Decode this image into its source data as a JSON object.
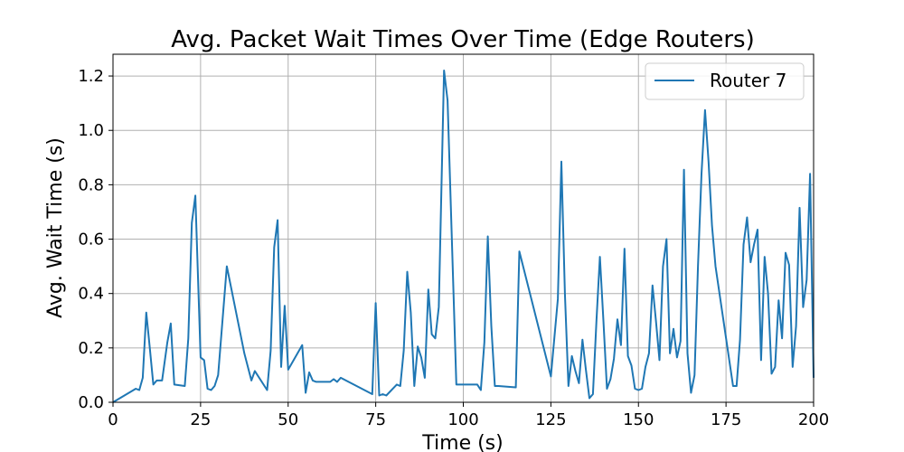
{
  "chart_data": {
    "type": "line",
    "title": "Avg. Packet Wait Times Over Time (Edge Routers)",
    "xlabel": "Time (s)",
    "ylabel": "Avg. Wait Time (s)",
    "xlim": [
      0,
      200
    ],
    "ylim": [
      0,
      1.28
    ],
    "xticks": [
      0,
      25,
      50,
      75,
      100,
      125,
      150,
      175,
      200
    ],
    "yticks": [
      0.0,
      0.2,
      0.4,
      0.6,
      0.8,
      1.0,
      1.2
    ],
    "xtick_labels": [
      "0",
      "25",
      "50",
      "75",
      "100",
      "125",
      "150",
      "175",
      "200"
    ],
    "ytick_labels": [
      "0.0",
      "0.2",
      "0.4",
      "0.6",
      "0.8",
      "1.0",
      "1.2"
    ],
    "grid": true,
    "legend_position": "top-right",
    "series": [
      {
        "name": "Router 7",
        "color": "#1f77b4",
        "x": [
          0,
          6.5,
          7.5,
          8.5,
          9.5,
          10.5,
          11.5,
          12.5,
          14,
          15.5,
          16.5,
          17.5,
          20.5,
          21.5,
          22.5,
          23.5,
          25,
          26,
          27,
          28,
          29,
          30,
          32.5,
          37.5,
          39.5,
          40.5,
          44,
          45,
          46,
          47,
          48,
          49,
          50,
          54,
          55,
          56,
          57,
          58,
          62,
          63,
          64,
          65,
          74,
          75,
          76,
          77,
          78,
          81,
          82,
          83,
          84,
          85,
          86,
          87,
          88,
          89,
          90,
          91,
          92,
          93,
          94.5,
          95.5,
          98,
          104,
          105,
          106,
          107,
          108,
          109,
          110,
          115,
          116,
          125,
          127,
          128,
          129,
          130,
          131,
          132,
          133,
          134,
          135,
          136,
          137,
          138,
          139,
          140,
          141,
          142,
          143,
          144,
          145,
          146,
          147,
          148,
          149,
          150,
          151,
          152,
          153,
          154,
          155,
          156,
          157,
          158,
          159,
          160,
          161,
          162,
          163,
          164,
          165,
          166,
          167,
          168,
          169,
          170,
          171,
          172,
          177,
          178,
          179,
          180,
          181,
          182,
          183,
          184,
          185,
          186,
          187,
          188,
          189,
          190,
          191,
          192,
          193,
          194,
          195,
          196,
          197,
          198,
          199,
          200
        ],
        "values": [
          0.0,
          0.05,
          0.045,
          0.09,
          0.33,
          0.2,
          0.065,
          0.08,
          0.08,
          0.22,
          0.29,
          0.065,
          0.06,
          0.235,
          0.66,
          0.76,
          0.165,
          0.155,
          0.05,
          0.045,
          0.06,
          0.1,
          0.5,
          0.18,
          0.08,
          0.115,
          0.045,
          0.19,
          0.57,
          0.67,
          0.13,
          0.355,
          0.12,
          0.21,
          0.035,
          0.11,
          0.08,
          0.075,
          0.075,
          0.085,
          0.075,
          0.09,
          0.03,
          0.365,
          0.025,
          0.03,
          0.025,
          0.065,
          0.06,
          0.19,
          0.48,
          0.33,
          0.06,
          0.205,
          0.165,
          0.09,
          0.415,
          0.25,
          0.235,
          0.35,
          1.22,
          1.11,
          0.065,
          0.065,
          0.045,
          0.22,
          0.61,
          0.28,
          0.06,
          0.06,
          0.055,
          0.555,
          0.095,
          0.38,
          0.885,
          0.4,
          0.06,
          0.17,
          0.115,
          0.07,
          0.23,
          0.12,
          0.015,
          0.03,
          0.3,
          0.535,
          0.3,
          0.05,
          0.085,
          0.16,
          0.305,
          0.21,
          0.565,
          0.17,
          0.135,
          0.05,
          0.045,
          0.05,
          0.13,
          0.18,
          0.43,
          0.3,
          0.155,
          0.5,
          0.6,
          0.18,
          0.27,
          0.165,
          0.225,
          0.855,
          0.18,
          0.035,
          0.1,
          0.5,
          0.84,
          1.075,
          0.885,
          0.65,
          0.5,
          0.06,
          0.06,
          0.23,
          0.58,
          0.68,
          0.515,
          0.58,
          0.635,
          0.155,
          0.535,
          0.4,
          0.105,
          0.13,
          0.375,
          0.235,
          0.55,
          0.505,
          0.13,
          0.28,
          0.715,
          0.35,
          0.45,
          0.84,
          0.09
        ]
      }
    ]
  }
}
